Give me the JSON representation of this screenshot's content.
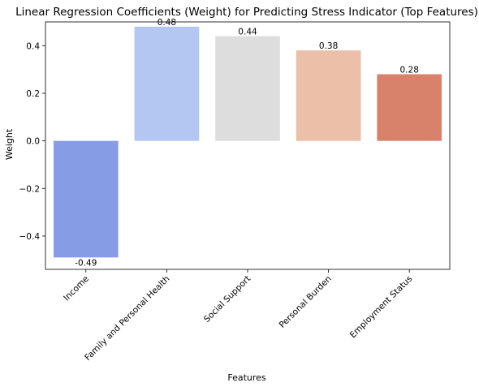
{
  "chart_data": {
    "type": "bar",
    "title": "Linear Regression Coefficients (Weight) for Predicting Stress Indicator (Top Features)",
    "xlabel": "Features",
    "ylabel": "Weight",
    "categories": [
      "Income",
      "Family and Personal Health",
      "Social Support",
      "Personal Burden",
      "Employment Status"
    ],
    "values": [
      -0.49,
      0.48,
      0.44,
      0.38,
      0.28
    ],
    "value_labels": [
      "-0.49",
      "0.48",
      "0.44",
      "0.38",
      "0.28"
    ],
    "colors": [
      "#869cE4",
      "#b4c7f3",
      "#dddddd",
      "#ebbfa8",
      "#d8826c"
    ],
    "ylim": [
      -0.54,
      0.5
    ],
    "yticks": [
      -0.4,
      -0.2,
      0.0,
      0.2,
      0.4
    ],
    "ytick_labels": [
      "−0.4",
      "−0.2",
      "0.0",
      "0.2",
      "0.4"
    ],
    "grid": false,
    "legend": "none"
  }
}
